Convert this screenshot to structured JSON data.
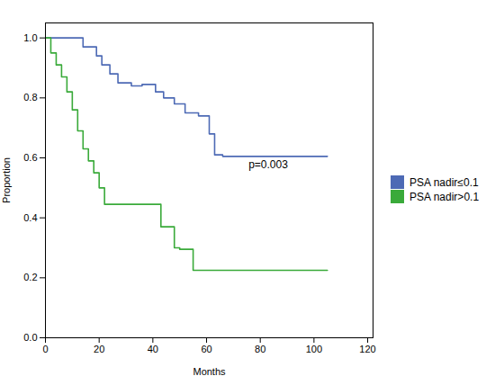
{
  "chart_data": {
    "type": "step",
    "xlabel": "Months",
    "ylabel": "Proportion",
    "xlim": [
      0,
      122
    ],
    "ylim": [
      0.0,
      1.05
    ],
    "xticks": [
      0,
      20,
      40,
      60,
      80,
      100,
      120
    ],
    "yticks": [
      {
        "value": 0.0,
        "label": "0.0"
      },
      0.2,
      0.4,
      0.6,
      0.8,
      {
        "value": 1.0,
        "label": "1.0"
      }
    ],
    "grid": false,
    "legend": "right",
    "annotations": [
      "p=0.003"
    ],
    "series": [
      {
        "name": "PSA nadir≤0.1",
        "color": "#4d6ab5",
        "x": [
          0,
          14,
          14,
          19,
          19,
          21,
          21,
          24,
          24,
          27,
          27,
          32,
          32,
          36,
          36,
          41,
          41,
          44,
          44,
          48,
          48,
          52,
          52,
          57,
          57,
          61,
          61,
          63,
          63,
          66,
          66,
          69,
          69,
          105,
          105
        ],
        "values": [
          1.0,
          1.0,
          0.97,
          0.97,
          0.94,
          0.94,
          0.91,
          0.91,
          0.88,
          0.88,
          0.85,
          0.85,
          0.84,
          0.84,
          0.845,
          0.845,
          0.82,
          0.82,
          0.8,
          0.8,
          0.78,
          0.78,
          0.75,
          0.75,
          0.74,
          0.74,
          0.68,
          0.68,
          0.61,
          0.61,
          0.605,
          0.605,
          0.605,
          0.605,
          0.605
        ]
      },
      {
        "name": "PSA nadir>0.1",
        "color": "#3aaa3a",
        "x": [
          0,
          2,
          2,
          4,
          4,
          6,
          6,
          8,
          8,
          10,
          10,
          12,
          12,
          14,
          14,
          16,
          16,
          18,
          18,
          20,
          20,
          22,
          22,
          30,
          30,
          38,
          38,
          43,
          43,
          48,
          48,
          50,
          50,
          55,
          55,
          60,
          60,
          63,
          63,
          65,
          65,
          68,
          68,
          73,
          73,
          105,
          105
        ],
        "values": [
          1.0,
          1.0,
          0.95,
          0.95,
          0.91,
          0.91,
          0.87,
          0.87,
          0.82,
          0.82,
          0.76,
          0.76,
          0.69,
          0.69,
          0.63,
          0.63,
          0.59,
          0.59,
          0.55,
          0.55,
          0.5,
          0.5,
          0.445,
          0.445,
          0.445,
          0.445,
          0.445,
          0.445,
          0.37,
          0.37,
          0.3,
          0.3,
          0.295,
          0.295,
          0.225,
          0.225,
          0.225,
          0.225,
          0.225,
          0.225,
          0.225,
          0.225,
          0.225,
          0.225,
          0.225,
          0.225,
          0.225
        ]
      }
    ]
  }
}
